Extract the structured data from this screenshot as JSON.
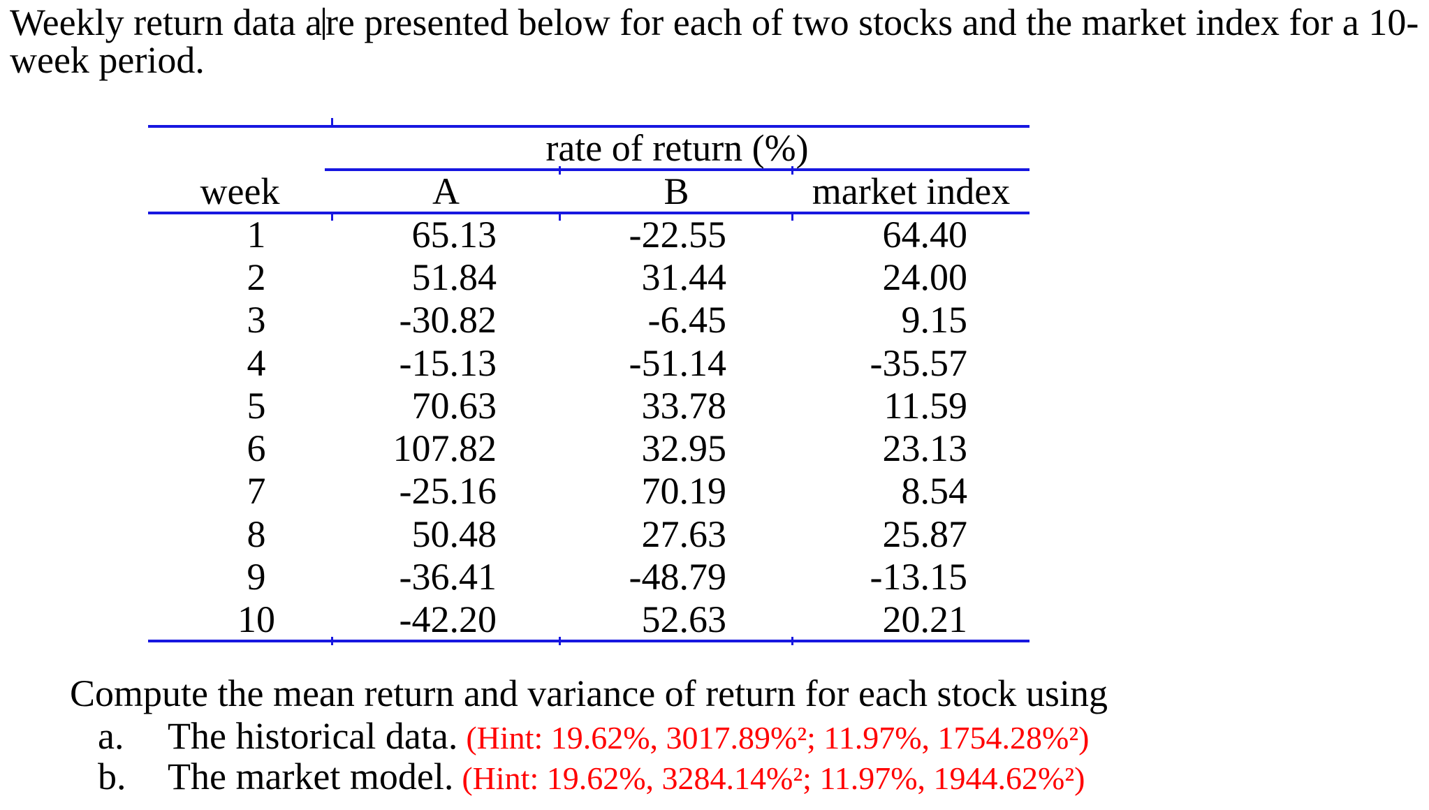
{
  "intro": {
    "line1_before_caret": "Weekly return data a",
    "line1_after_caret": "re presented below for each of two stocks and the market index for a 10-",
    "line2": "week period."
  },
  "table": {
    "spanner": "rate of return (%)",
    "columns": [
      "week",
      "A",
      "B",
      "market index"
    ],
    "rows": [
      {
        "week": "1",
        "a": "65.13",
        "b": "-22.55",
        "market": "64.40"
      },
      {
        "week": "2",
        "a": "51.84",
        "b": "31.44",
        "market": "24.00"
      },
      {
        "week": "3",
        "a": "-30.82",
        "b": "-6.45",
        "market": "9.15"
      },
      {
        "week": "4",
        "a": "-15.13",
        "b": "-51.14",
        "market": "-35.57"
      },
      {
        "week": "5",
        "a": "70.63",
        "b": "33.78",
        "market": "11.59"
      },
      {
        "week": "6",
        "a": "107.82",
        "b": "32.95",
        "market": "23.13"
      },
      {
        "week": "7",
        "a": "-25.16",
        "b": "70.19",
        "market": "8.54"
      },
      {
        "week": "8",
        "a": "50.48",
        "b": "27.63",
        "market": "25.87"
      },
      {
        "week": "9",
        "a": "-36.41",
        "b": "-48.79",
        "market": "-13.15"
      },
      {
        "week": "10",
        "a": "-42.20",
        "b": "52.63",
        "market": "20.21"
      }
    ]
  },
  "question": {
    "prompt": "Compute the mean return and variance of return for each stock using",
    "items": [
      {
        "label": "a.",
        "text": "The historical data.",
        "hint": "(Hint: 19.62%, 3017.89%²; 11.97%, 1754.28%²)"
      },
      {
        "label": "b.",
        "text": "The market model.",
        "hint": "(Hint: 19.62%, 3284.14%²; 11.97%, 1944.62%²)"
      }
    ]
  },
  "colors": {
    "rule_blue": "#1717e0",
    "hint_red": "#ff0000",
    "text_black": "#000000"
  }
}
